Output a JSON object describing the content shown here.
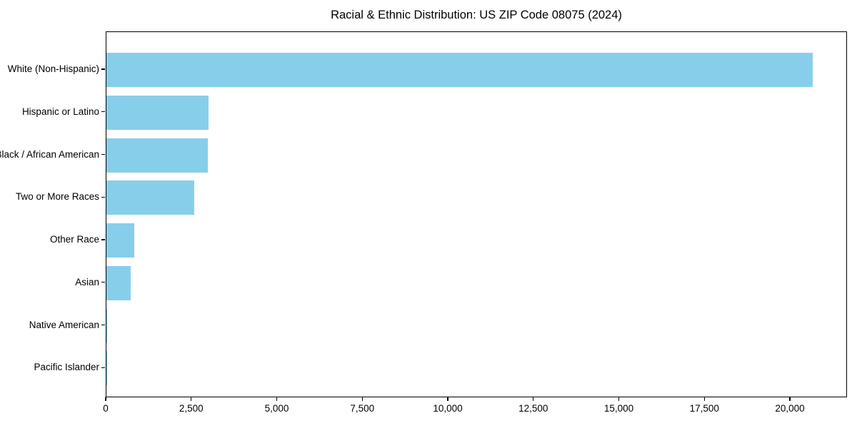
{
  "chart_data": {
    "type": "bar",
    "orientation": "horizontal",
    "title": "Racial & Ethnic Distribution: US ZIP Code 08075 (2024)",
    "categories": [
      "White (Non-Hispanic)",
      "Hispanic or Latino",
      "Black / African American",
      "Two or More Races",
      "Other Race",
      "Asian",
      "Native American",
      "Pacific Islander"
    ],
    "values": [
      20640,
      2980,
      2960,
      2570,
      820,
      700,
      30,
      10
    ],
    "xlabel": "",
    "ylabel": "",
    "xlim": [
      0,
      21670
    ],
    "xticks": [
      0,
      2500,
      5000,
      7500,
      10000,
      12500,
      15000,
      17500,
      20000
    ],
    "xtick_labels": [
      "0",
      "2,500",
      "5,000",
      "7,500",
      "10,000",
      "12,500",
      "15,000",
      "17,500",
      "20,000"
    ],
    "bar_color": "#87ceeb",
    "grid": false,
    "legend_position": "none"
  }
}
